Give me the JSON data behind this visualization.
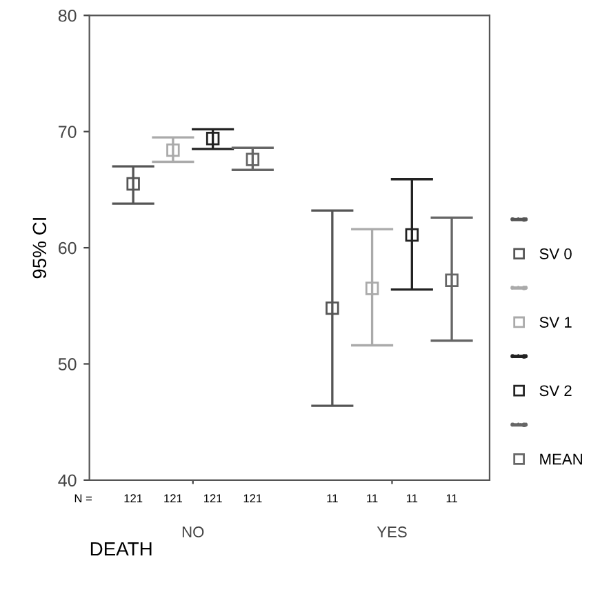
{
  "chart_data": {
    "type": "scatter",
    "categories": [
      "NO",
      "YES"
    ],
    "xlabel": "DEATH",
    "ylabel": "95% CI",
    "ylim": [
      40,
      80
    ],
    "yticks": [
      40,
      50,
      60,
      70,
      80
    ],
    "marker": "square",
    "legend": "right",
    "grid": false,
    "series": [
      {
        "name": "SV 0",
        "color": "#555555",
        "values": [
          65.5,
          54.8
        ],
        "errors": [
          [
            63.8,
            67.0
          ],
          [
            46.4,
            63.2
          ]
        ]
      },
      {
        "name": "SV 1",
        "color": "#aaaaaa",
        "values": [
          68.4,
          56.5
        ],
        "errors": [
          [
            67.4,
            69.5
          ],
          [
            51.6,
            61.6
          ]
        ]
      },
      {
        "name": "SV 2",
        "color": "#222222",
        "values": [
          69.4,
          61.1
        ],
        "errors": [
          [
            68.5,
            70.2
          ],
          [
            56.4,
            65.9
          ]
        ]
      },
      {
        "name": "MEAN",
        "color": "#666666",
        "values": [
          67.6,
          57.2
        ],
        "errors": [
          [
            66.7,
            68.6
          ],
          [
            52.0,
            62.6
          ]
        ]
      }
    ],
    "annotations": [
      "N =",
      "121",
      "11",
      "121",
      "11",
      "121",
      "11",
      "121",
      "11"
    ]
  }
}
